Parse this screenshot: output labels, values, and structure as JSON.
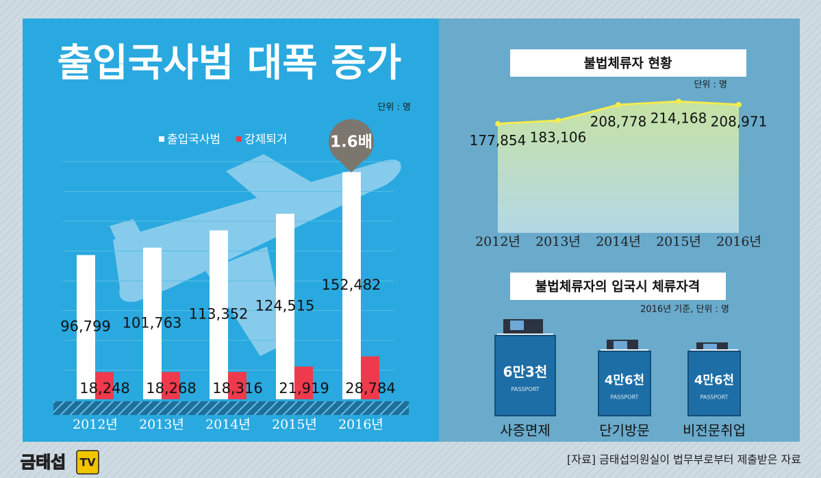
{
  "chart_data": [
    {
      "type": "bar",
      "title": "출입국사범 대폭 증가",
      "unit": "단위 : 명",
      "annotation": "1.6배",
      "categories": [
        "2012년",
        "2013년",
        "2014년",
        "2015년",
        "2016년"
      ],
      "series": [
        {
          "name": "출입국사범",
          "color": "#ffffff",
          "values": [
            96799,
            101763,
            113352,
            124515,
            152482
          ],
          "value_labels": [
            "96,799",
            "101,763",
            "113,352",
            "124,515",
            "152,482"
          ]
        },
        {
          "name": "강제퇴거",
          "color": "#ee3a4c",
          "values": [
            18248,
            18268,
            18316,
            21919,
            28784
          ],
          "value_labels": [
            "18,248",
            "18,268",
            "18,316",
            "21,919",
            "28,784"
          ]
        }
      ],
      "ylim": [
        0,
        160000
      ]
    },
    {
      "type": "line",
      "title": "불법체류자 현황",
      "unit": "단위 : 명",
      "categories": [
        "2012년",
        "2013년",
        "2014년",
        "2015년",
        "2016년"
      ],
      "values": [
        177854,
        183106,
        208778,
        214168,
        208971
      ],
      "value_labels": [
        "177,854",
        "183,106",
        "208,778",
        "214,168",
        "208,971"
      ],
      "color": "#f3ec4c",
      "ylim": [
        0,
        240000
      ]
    }
  ],
  "status": {
    "title": "불법체류자의 입국시 체류자격",
    "note": "2016년 기준, 단위 : 명",
    "cover_text": "PASSPORT",
    "items": [
      {
        "amount": "6만3천",
        "label": "사증면제"
      },
      {
        "amount": "4만6천",
        "label": "단기방문"
      },
      {
        "amount": "4만6천",
        "label": "비전문취업"
      }
    ]
  },
  "footer": {
    "logo": "금태섭",
    "logo_mark": "TV",
    "source": "[자료] 금태섭의원실이 법무부로부터 제출받은 자료"
  }
}
